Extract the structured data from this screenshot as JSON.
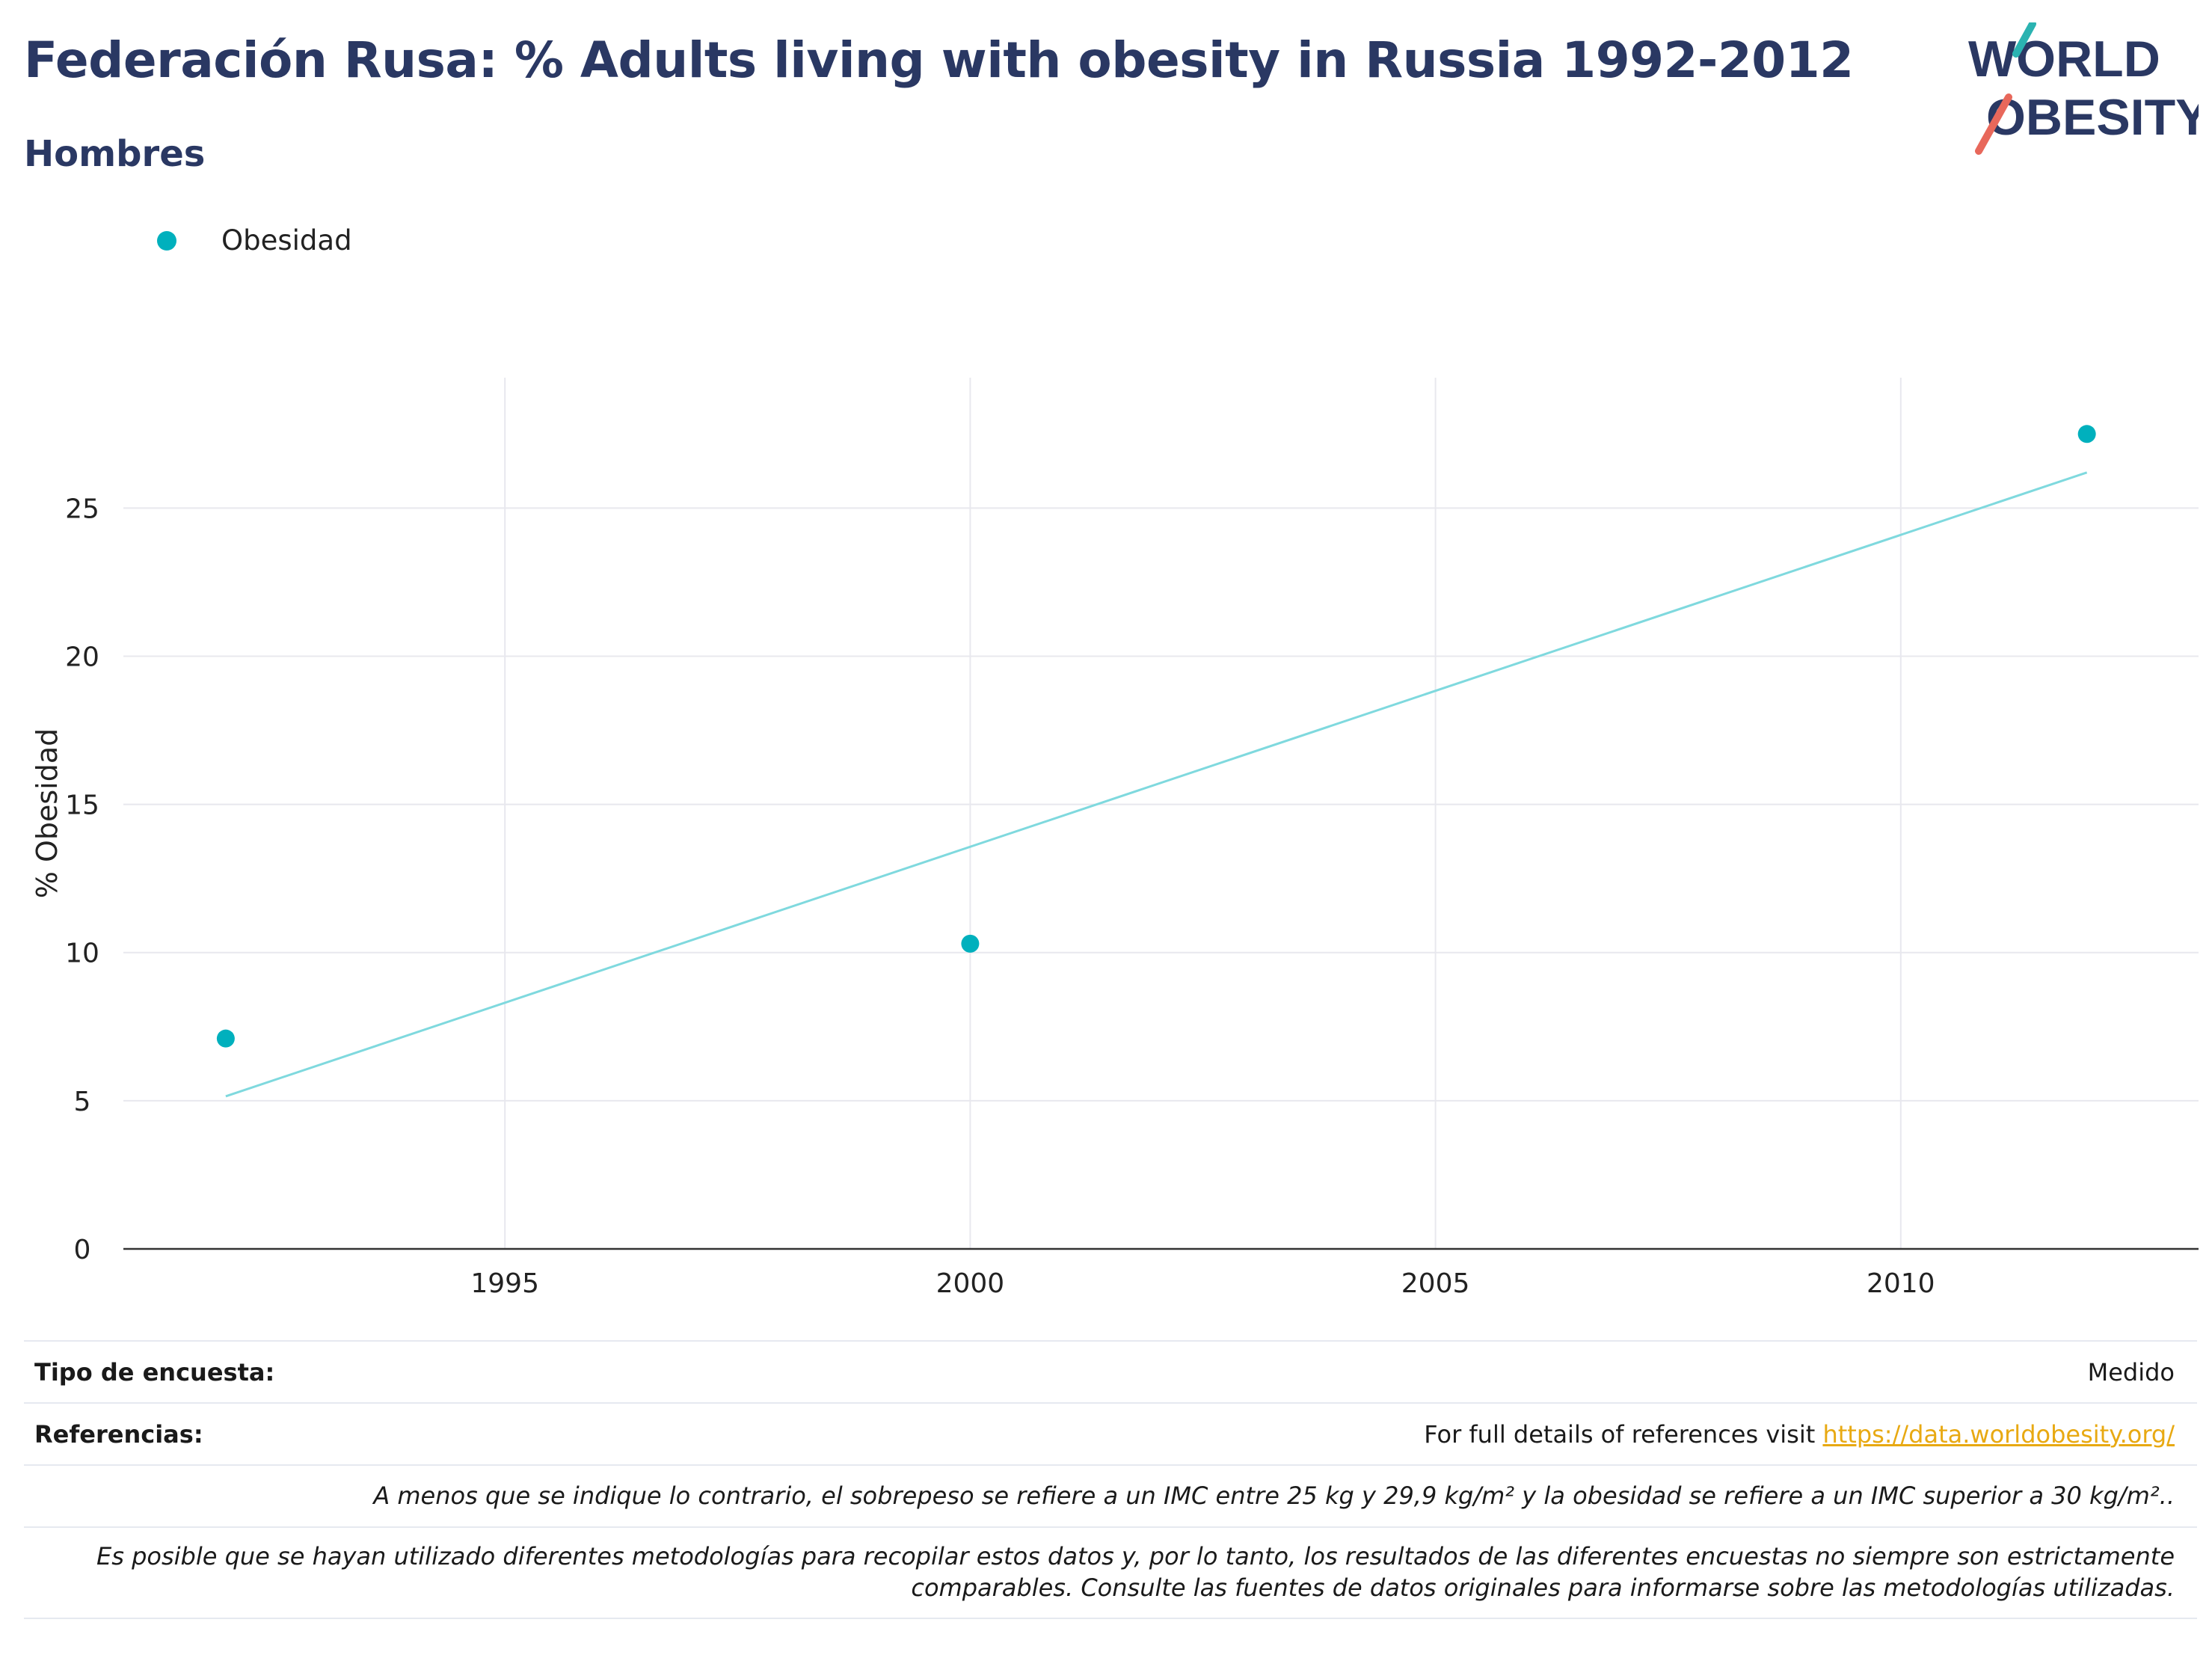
{
  "header": {
    "title": "Federación Rusa: % Adults living with obesity in Russia 1992-2012",
    "subtitle": "Hombres"
  },
  "logo": {
    "line1": "WORLD",
    "line2": "OBESITY"
  },
  "colors": {
    "title": "#2a3863",
    "series": "#00b0bd",
    "trend": "#7fd9de",
    "link": "#e8a912",
    "grid": "#e8e8ee"
  },
  "chart_data": {
    "type": "scatter",
    "title": "Federación Rusa: % Adults living with obesity in Russia 1992-2012",
    "subtitle": "Hombres",
    "xlabel": "",
    "ylabel": "% Obesidad",
    "xlim": [
      1990.9,
      2013.2
    ],
    "ylim": [
      0,
      29.4
    ],
    "xticks": [
      1995,
      2000,
      2005,
      2010
    ],
    "yticks": [
      0,
      5,
      10,
      15,
      20,
      25
    ],
    "grid": true,
    "legend": "top-left",
    "series": [
      {
        "name": "Obesidad",
        "x": [
          1992,
          2000,
          2012
        ],
        "y": [
          7.1,
          10.3,
          27.5
        ]
      }
    ],
    "trendline": {
      "x": [
        1992,
        2012
      ],
      "y": [
        5.15,
        26.2
      ]
    }
  },
  "footer": {
    "survey_type_label": "Tipo de encuesta:",
    "survey_type_value": "Medido",
    "references_label": "Referencias:",
    "references_text": "For full details of references visit ",
    "references_link": "https://data.worldobesity.org/",
    "note1": "A menos que se indique lo contrario, el sobrepeso se refiere a un IMC entre 25 kg y 29,9 kg/m² y la obesidad se refiere a un IMC superior a 30 kg/m²..",
    "note2a": "Es posible que se hayan utilizado diferentes metodologías para recopilar estos datos y, por lo tanto, los resultados de las diferentes encuestas no siempre son estrictamente",
    "note2b": "comparables. Consulte las fuentes de datos originales para informarse sobre las metodologías utilizadas."
  }
}
